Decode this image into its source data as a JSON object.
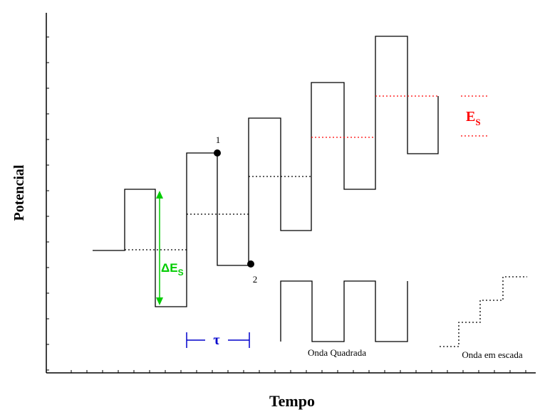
{
  "axes": {
    "y_label": "Potencial",
    "x_label": "Tempo"
  },
  "annotations": {
    "delta_es": "ΔE",
    "delta_es_sub": "S",
    "es": "E",
    "es_sub": "S",
    "tau": "τ",
    "point_1": "1",
    "point_2": "2"
  },
  "insets": {
    "square_wave": "Onda Quadrada",
    "staircase_wave": "Onda em escada"
  },
  "colors": {
    "delta_es": "#00cc00",
    "es": "#ff0000",
    "tau": "#0000cc",
    "axis": "#000000"
  }
}
